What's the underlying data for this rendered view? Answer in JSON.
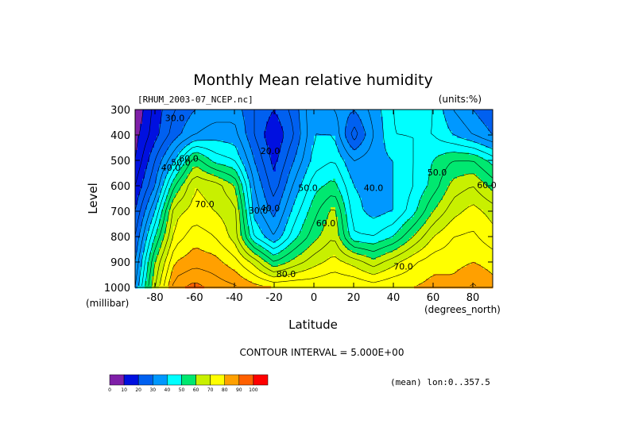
{
  "title": "Monthly Mean relative humidity",
  "dataset_label": "[RHUM_2003-07_NCEP.nc]",
  "units_label": "(units:%)",
  "y_title": "Level",
  "y_unit": "(millibar)",
  "x_title": "Latitude",
  "x_unit": "(degrees_north)",
  "contour_interval": "CONTOUR INTERVAL = 5.000E+00",
  "mean_note": "(mean) lon:0..357.5",
  "x_ticks": [
    "-80",
    "-60",
    "-40",
    "-20",
    "0",
    "20",
    "40",
    "60",
    "80"
  ],
  "y_ticks": [
    "300",
    "400",
    "500",
    "600",
    "700",
    "800",
    "900",
    "1000"
  ],
  "colorbar": {
    "labels": [
      "0",
      "10",
      "20",
      "30",
      "40",
      "50",
      "60",
      "70",
      "80",
      "90",
      "100"
    ],
    "colors": [
      "#7f1fa8",
      "#0010e0",
      "#0060f0",
      "#0098ff",
      "#00ffff",
      "#00e870",
      "#c8f000",
      "#ffff00",
      "#ffa000",
      "#ff6000",
      "#ff0000"
    ]
  },
  "contour_labels": [
    {
      "text": "30.0",
      "lat": -70,
      "p": 345
    },
    {
      "text": "40.0",
      "lat": -72,
      "p": 540
    },
    {
      "text": "50.0",
      "lat": -67,
      "p": 520
    },
    {
      "text": "60.0",
      "lat": -63,
      "p": 505
    },
    {
      "text": "70.0",
      "lat": -55,
      "p": 685
    },
    {
      "text": "20.0",
      "lat": -22,
      "p": 475
    },
    {
      "text": "30.0",
      "lat": -28,
      "p": 710
    },
    {
      "text": "40.0",
      "lat": -22,
      "p": 700
    },
    {
      "text": "50.0",
      "lat": -3,
      "p": 620
    },
    {
      "text": "60.0",
      "lat": 6,
      "p": 760
    },
    {
      "text": "40.0",
      "lat": 30,
      "p": 620
    },
    {
      "text": "50.0",
      "lat": 62,
      "p": 560
    },
    {
      "text": "60.0",
      "lat": 87,
      "p": 610
    },
    {
      "text": "70.0",
      "lat": 45,
      "p": 930
    },
    {
      "text": "80.0",
      "lat": -14,
      "p": 960
    }
  ],
  "chart_data": {
    "type": "heatmap",
    "title": "Monthly Mean relative humidity",
    "xlabel": "Latitude",
    "ylabel": "Level",
    "x_units": "degrees_north",
    "y_units": "millibar",
    "z_units": "%",
    "xlim": [
      -90,
      90
    ],
    "ylim": [
      1000,
      300
    ],
    "contour_interval": 5,
    "lat": [
      -90,
      -80,
      -70,
      -60,
      -50,
      -40,
      -30,
      -20,
      -10,
      0,
      10,
      20,
      30,
      40,
      50,
      60,
      70,
      80,
      90
    ],
    "levels": [
      300,
      400,
      500,
      600,
      700,
      800,
      900,
      1000
    ],
    "rhum": [
      [
        5,
        17,
        25,
        30,
        32,
        33,
        25,
        20,
        27,
        40,
        35,
        30,
        37,
        45,
        50,
        45,
        35,
        30,
        25
      ],
      [
        8,
        18,
        28,
        35,
        38,
        37,
        25,
        15,
        25,
        40,
        40,
        22,
        35,
        45,
        45,
        45,
        40,
        35,
        30
      ],
      [
        10,
        25,
        40,
        58,
        48,
        45,
        30,
        18,
        30,
        42,
        45,
        35,
        38,
        40,
        45,
        50,
        55,
        55,
        48
      ],
      [
        15,
        30,
        55,
        70,
        68,
        60,
        35,
        22,
        36,
        48,
        52,
        40,
        38,
        40,
        45,
        52,
        62,
        65,
        58
      ],
      [
        20,
        40,
        68,
        72,
        70,
        67,
        38,
        28,
        42,
        53,
        62,
        42,
        38,
        40,
        48,
        60,
        68,
        72,
        68
      ],
      [
        25,
        50,
        72,
        78,
        75,
        68,
        45,
        35,
        48,
        58,
        65,
        46,
        45,
        50,
        60,
        70,
        75,
        76,
        72
      ],
      [
        30,
        60,
        80,
        83,
        82,
        77,
        68,
        55,
        62,
        68,
        72,
        68,
        62,
        68,
        74,
        78,
        78,
        80,
        78
      ],
      [
        35,
        65,
        88,
        92,
        88,
        86,
        82,
        80,
        80,
        79,
        80,
        80,
        78,
        80,
        80,
        82,
        82,
        86,
        82
      ]
    ]
  }
}
